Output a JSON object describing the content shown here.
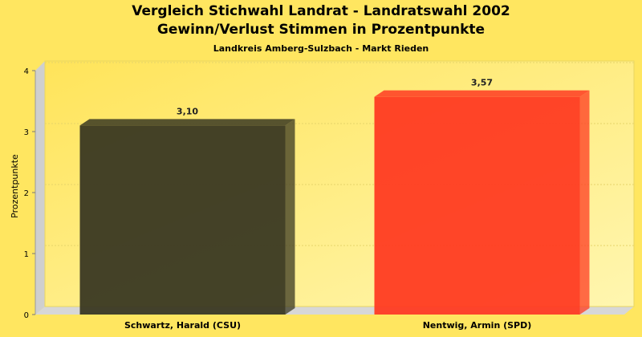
{
  "chart_data": {
    "type": "bar",
    "title_line1": "Vergleich Stichwahl Landrat - Landratswahl 2002",
    "title_line2": "Gewinn/Verlust Stimmen in Prozentpunkte",
    "subtitle": "Landkreis Amberg-Sulzbach - Markt Rieden",
    "ylabel": "Prozentpunkte",
    "xlabel": "",
    "categories": [
      "Schwartz, Harald (CSU)",
      "Nentwig, Armin (SPD)"
    ],
    "values": [
      3.1,
      3.57
    ],
    "value_labels": [
      "3,10",
      "3,57"
    ],
    "bar_colors": [
      "#3A3822",
      "#FF3B22"
    ],
    "ylim": [
      0,
      4
    ],
    "yticks": [
      "0",
      "1",
      "2",
      "3",
      "4"
    ],
    "grid": true,
    "legend": "none"
  }
}
